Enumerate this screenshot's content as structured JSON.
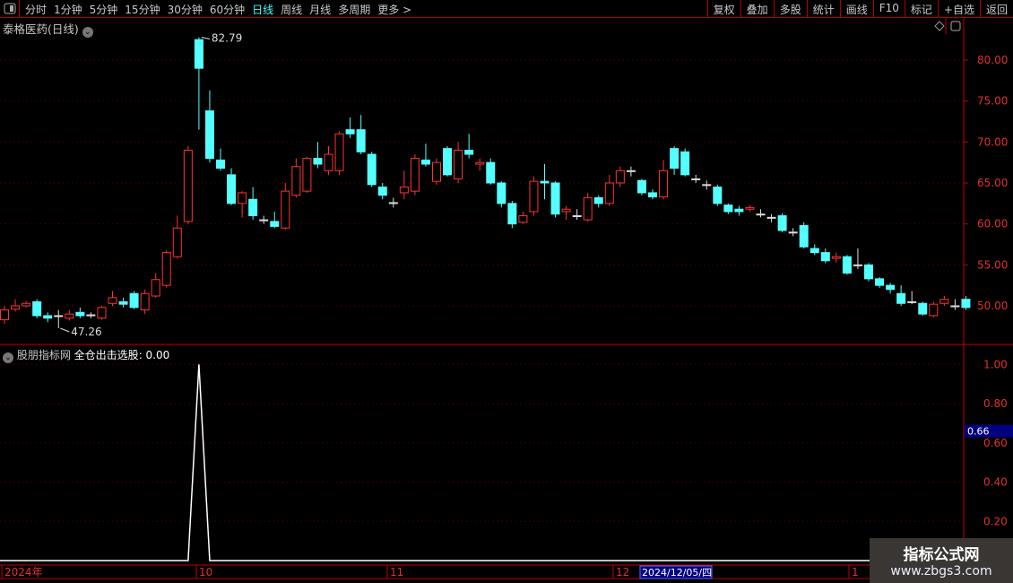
{
  "toolbar": {
    "periods": [
      "分时",
      "1分钟",
      "5分钟",
      "15分钟",
      "30分钟",
      "60分钟",
      "日线",
      "周线",
      "月线",
      "多周期",
      "更多 >"
    ],
    "active": "日线",
    "buttons": [
      "复权",
      "叠加",
      "多股",
      "统计",
      "画线",
      "F10",
      "标记",
      "+自选",
      "返回"
    ]
  },
  "chart": {
    "title": "泰格医药(日线)",
    "max_label": "82.79",
    "min_label": "47.26",
    "price_ticks": [
      80,
      75,
      70,
      65,
      60,
      55,
      50
    ],
    "price_tick_labels": [
      "80.00",
      "75.00",
      "70.00",
      "65.00",
      "60.00",
      "55.00",
      "50.00"
    ]
  },
  "candles": [
    [
      48.3,
      49.5,
      50,
      47.8
    ],
    [
      49.6,
      50,
      50.8,
      49.3
    ],
    [
      50,
      50.3,
      50.6,
      49.8
    ],
    [
      50.5,
      48.8,
      50.8,
      48.5
    ],
    [
      48.8,
      48.5,
      49.2,
      48
    ],
    [
      48.8,
      48.8,
      49.5,
      47.26
    ],
    [
      48.5,
      49,
      49.5,
      48.2
    ],
    [
      49.2,
      48.8,
      49.8,
      48.5
    ],
    [
      48.8,
      48.9,
      49.2,
      48.5
    ],
    [
      48.5,
      49.8,
      50,
      48.3
    ],
    [
      50.3,
      51,
      51.8,
      50
    ],
    [
      50.5,
      50.2,
      51,
      49.8
    ],
    [
      51.5,
      49.8,
      51.8,
      49.6
    ],
    [
      49.5,
      51.5,
      52,
      49
    ],
    [
      51.2,
      53.2,
      54,
      51
    ],
    [
      52.5,
      56.5,
      56.8,
      52.2
    ],
    [
      56,
      59.5,
      61,
      55.8
    ],
    [
      60.3,
      69,
      69.5,
      60
    ],
    [
      82.5,
      79,
      82.79,
      71.5
    ],
    [
      73.8,
      68,
      76.3,
      67.5
    ],
    [
      67.8,
      66.8,
      69.2,
      66.5
    ],
    [
      66,
      62.5,
      66.8,
      62.3
    ],
    [
      62.5,
      63.8,
      64,
      60.8
    ],
    [
      63,
      61,
      64.5,
      60.5
    ],
    [
      60.5,
      60.4,
      61,
      60
    ],
    [
      60.3,
      59.7,
      61.5,
      59.5
    ],
    [
      59.5,
      64,
      65,
      59.3
    ],
    [
      63.5,
      67,
      68,
      63.2
    ],
    [
      64,
      68,
      68.2,
      63.8
    ],
    [
      68,
      67.3,
      70,
      66.8
    ],
    [
      66.5,
      68.5,
      69.5,
      66
    ],
    [
      66.5,
      71,
      71.3,
      66
    ],
    [
      71.5,
      71,
      73,
      70.5
    ],
    [
      71.5,
      68.8,
      73.3,
      68.5
    ],
    [
      68.5,
      64.8,
      68.8,
      64.5
    ],
    [
      64.5,
      63.5,
      65,
      63
    ],
    [
      62.5,
      62.6,
      63.2,
      62
    ],
    [
      63.8,
      64.5,
      66.5,
      63
    ],
    [
      64,
      68,
      68.5,
      63.5
    ],
    [
      67.8,
      67.3,
      69.8,
      67
    ],
    [
      65.2,
      67.5,
      68,
      64.8
    ],
    [
      69.2,
      66,
      69.5,
      65.8
    ],
    [
      65.5,
      69,
      70,
      65
    ],
    [
      69,
      68.5,
      71,
      68
    ],
    [
      67.3,
      67.5,
      68,
      66.5
    ],
    [
      67.5,
      65,
      68,
      64.8
    ],
    [
      65,
      62.5,
      65.2,
      62
    ],
    [
      62.5,
      60,
      62.8,
      59.5
    ],
    [
      60.2,
      61,
      61.5,
      60
    ],
    [
      61.5,
      65.2,
      65.8,
      61
    ],
    [
      65.2,
      65,
      67.3,
      63
    ],
    [
      65,
      61.2,
      65.2,
      60.8
    ],
    [
      61.5,
      61.8,
      62.2,
      60.5
    ],
    [
      61,
      61,
      61.8,
      60.5
    ],
    [
      60.5,
      63.2,
      63.8,
      60.3
    ],
    [
      63.2,
      62.5,
      63.5,
      62
    ],
    [
      62.5,
      65,
      66,
      62.2
    ],
    [
      65,
      66.5,
      67,
      64.5
    ],
    [
      66.5,
      66.5,
      67,
      65.8
    ],
    [
      65.3,
      63.8,
      65.5,
      63.5
    ],
    [
      63.8,
      63.3,
      64.2,
      63
    ],
    [
      63.3,
      66.5,
      67.8,
      63
    ],
    [
      69.2,
      66.8,
      69.5,
      66
    ],
    [
      68.8,
      66,
      69.2,
      65.8
    ],
    [
      65.5,
      65.5,
      66,
      65
    ],
    [
      64.8,
      64.8,
      65.3,
      64.2
    ],
    [
      64.5,
      62.5,
      64.8,
      62.2
    ],
    [
      62.3,
      61.5,
      62.5,
      61.2
    ],
    [
      61.8,
      61.5,
      62.2,
      61
    ],
    [
      61.8,
      62,
      62.3,
      61.5
    ],
    [
      61.2,
      61.2,
      61.8,
      60.8
    ],
    [
      60.8,
      60.8,
      61.2,
      60.2
    ],
    [
      61,
      59.2,
      61.3,
      59
    ],
    [
      59,
      59,
      59.5,
      58.5
    ],
    [
      59.8,
      57.2,
      60.2,
      57
    ],
    [
      57,
      56.5,
      57.5,
      56.2
    ],
    [
      56.5,
      55.5,
      57,
      55.2
    ],
    [
      55.8,
      56,
      56.5,
      55.3
    ],
    [
      56,
      54,
      56.2,
      53.8
    ],
    [
      55,
      55,
      57,
      54.5
    ],
    [
      55,
      53.3,
      55.2,
      53
    ],
    [
      53.3,
      52.5,
      53.5,
      52.2
    ],
    [
      52.5,
      52,
      52.8,
      51.5
    ],
    [
      51.5,
      50.3,
      52.5,
      50
    ],
    [
      50.5,
      50.5,
      51.8,
      50.2
    ],
    [
      50.3,
      49,
      50.5,
      48.8
    ],
    [
      48.8,
      50.2,
      50.5,
      48.6
    ],
    [
      50.3,
      50.8,
      51.2,
      50
    ],
    [
      50,
      50,
      50.8,
      49.5
    ],
    [
      50.8,
      49.8,
      51.2,
      49.5
    ]
  ],
  "indicator": {
    "source": "股朋指标网",
    "name": "全仓出击选股",
    "value": "0.00",
    "ticks": [
      "1.00",
      "0.80",
      "0.60",
      "0.40",
      "0.20"
    ],
    "cursor_value": "0.66",
    "spike_index": 18
  },
  "date_axis": {
    "labels": [
      "2024年",
      "10",
      "11",
      "12",
      "1"
    ],
    "cursor_date": "2024/12/05/四"
  },
  "watermark": {
    "line1": "指标公式网",
    "line2": "www.zbgs3.com"
  },
  "colors": {
    "up": "#ff3232",
    "down": "#54ffff",
    "axis": "#c00000",
    "cursor_bg": "#000080"
  }
}
